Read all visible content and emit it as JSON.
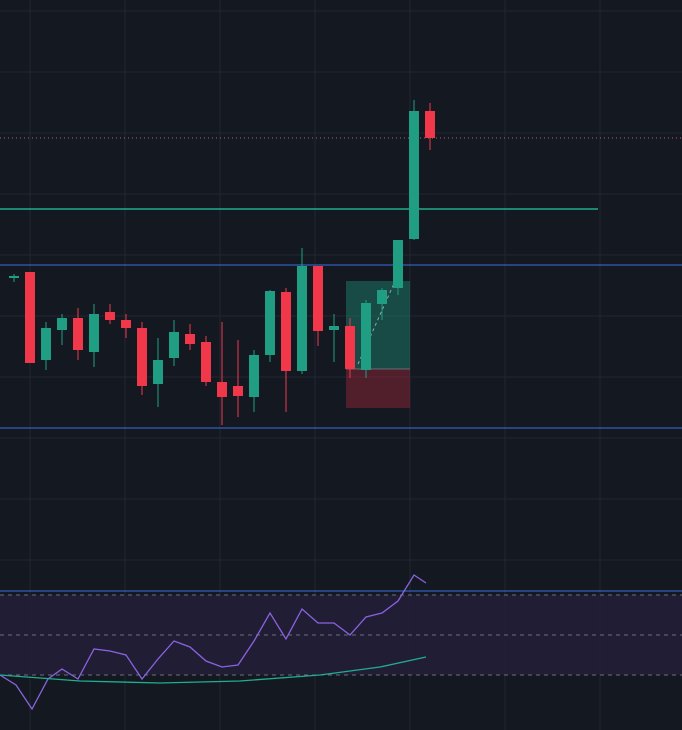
{
  "colors": {
    "background": "#141821",
    "grid": "#212632",
    "bull": "#1f9e84",
    "bear": "#f0384a",
    "level_blue": "#3d6fe0",
    "level_teal": "#1fae8e",
    "dotted_pink": "#c05a8a",
    "position_profit_fill": "#1f8a74",
    "position_loss_fill": "#7a2433",
    "rsi_band_fill": "#231f38",
    "rsi_line": "#8a63e0",
    "rsi_ma_line": "#1fae8e",
    "rsi_guide": "#6b6f7c"
  },
  "chart_data": [
    {
      "type": "candlestick",
      "ylim": [
        0,
        590
      ],
      "grid": true,
      "candles": [
        {
          "x": 14,
          "o": 312,
          "h": 316,
          "l": 308,
          "c": 314
        },
        {
          "x": 30,
          "o": 318,
          "h": 318,
          "l": 227,
          "c": 227
        },
        {
          "x": 46,
          "o": 230,
          "h": 268,
          "l": 220,
          "c": 262
        },
        {
          "x": 62,
          "o": 260,
          "h": 276,
          "l": 245,
          "c": 272
        },
        {
          "x": 78,
          "o": 272,
          "h": 282,
          "l": 230,
          "c": 240
        },
        {
          "x": 94,
          "o": 238,
          "h": 286,
          "l": 223,
          "c": 276
        },
        {
          "x": 110,
          "o": 278,
          "h": 286,
          "l": 266,
          "c": 270
        },
        {
          "x": 126,
          "o": 270,
          "h": 276,
          "l": 252,
          "c": 262
        },
        {
          "x": 142,
          "o": 262,
          "h": 268,
          "l": 195,
          "c": 204
        },
        {
          "x": 158,
          "o": 206,
          "h": 252,
          "l": 183,
          "c": 230
        },
        {
          "x": 174,
          "o": 232,
          "h": 270,
          "l": 224,
          "c": 258
        },
        {
          "x": 190,
          "o": 256,
          "h": 266,
          "l": 240,
          "c": 246
        },
        {
          "x": 206,
          "o": 248,
          "h": 254,
          "l": 204,
          "c": 208
        },
        {
          "x": 222,
          "o": 208,
          "h": 268,
          "l": 165,
          "c": 193
        },
        {
          "x": 238,
          "o": 204,
          "h": 250,
          "l": 173,
          "c": 194
        },
        {
          "x": 254,
          "o": 193,
          "h": 240,
          "l": 178,
          "c": 235
        },
        {
          "x": 270,
          "o": 235,
          "h": 300,
          "l": 228,
          "c": 299
        },
        {
          "x": 286,
          "o": 298,
          "h": 302,
          "l": 178,
          "c": 219
        },
        {
          "x": 302,
          "o": 219,
          "h": 342,
          "l": 216,
          "c": 324
        },
        {
          "x": 318,
          "o": 324,
          "h": 324,
          "l": 244,
          "c": 259
        },
        {
          "x": 334,
          "o": 260,
          "h": 276,
          "l": 228,
          "c": 264
        },
        {
          "x": 350,
          "o": 264,
          "h": 272,
          "l": 212,
          "c": 221
        },
        {
          "x": 366,
          "o": 220,
          "h": 290,
          "l": 212,
          "c": 287
        },
        {
          "x": 382,
          "o": 286,
          "h": 302,
          "l": 270,
          "c": 300
        },
        {
          "x": 398,
          "o": 302,
          "h": 350,
          "l": 295,
          "c": 350
        },
        {
          "x": 414,
          "o": 351,
          "h": 490,
          "l": 350,
          "c": 479
        },
        {
          "x": 430,
          "o": 479,
          "h": 487,
          "l": 440,
          "c": 452
        }
      ],
      "levels": [
        {
          "name": "blue-upper",
          "value": 325
        },
        {
          "name": "blue-lower",
          "value": 162
        },
        {
          "name": "teal",
          "value": 381
        },
        {
          "name": "pink-dotted",
          "value": 452
        }
      ],
      "position": {
        "x_start": 346,
        "x_end": 410,
        "entry": 221,
        "target": 309,
        "stop": 182
      }
    },
    {
      "type": "line",
      "ylim": [
        0,
        100
      ],
      "grid": false,
      "guides": [
        70,
        50,
        30
      ],
      "series": [
        {
          "x": [
            0,
            16,
            32,
            48,
            62,
            78,
            94,
            110,
            126,
            142,
            158,
            174,
            190,
            206,
            222,
            238,
            254,
            270,
            286,
            302,
            318,
            334,
            350,
            366,
            382,
            398,
            414,
            426
          ],
          "values": [
            30,
            25,
            13,
            28,
            33,
            28,
            43,
            42,
            40,
            28,
            38,
            47,
            44,
            37,
            34,
            35,
            47,
            61,
            48,
            63,
            56,
            56,
            50,
            59,
            61,
            67,
            80,
            76
          ]
        },
        {
          "x": [
            0,
            80,
            160,
            240,
            320,
            380,
            426
          ],
          "values": [
            30,
            27,
            26,
            27,
            30,
            34,
            39
          ]
        }
      ]
    }
  ]
}
